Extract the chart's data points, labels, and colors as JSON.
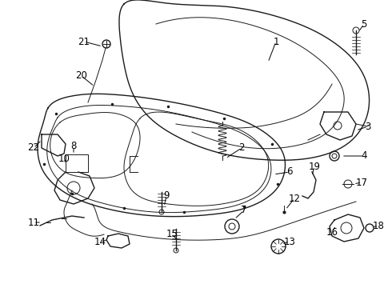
{
  "background_color": "#ffffff",
  "line_color": "#1a1a1a",
  "label_color": "#000000",
  "figure_width": 4.9,
  "figure_height": 3.6,
  "dpi": 100,
  "label_fontsize": 8.5
}
